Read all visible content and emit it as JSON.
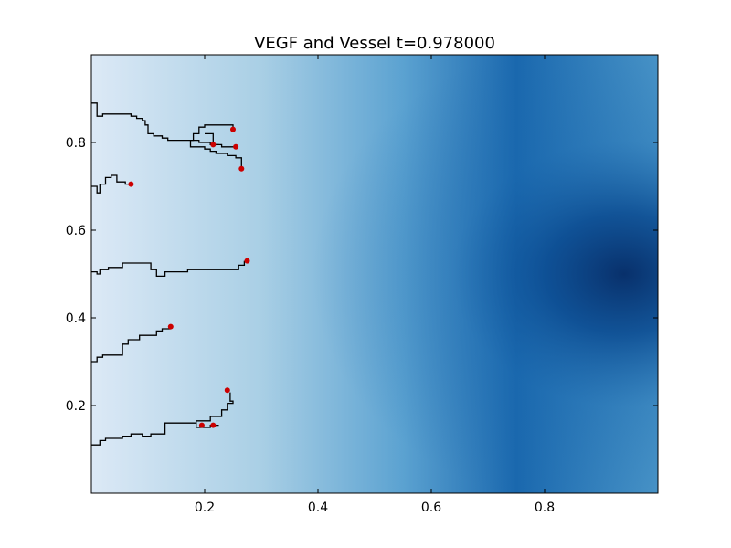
{
  "chart_data": {
    "type": "heatmap",
    "title": "VEGF and Vessel t=0.978000",
    "xlabel": "",
    "ylabel": "",
    "xlim": [
      0.0,
      1.0
    ],
    "ylim": [
      0.0,
      1.0
    ],
    "x_ticks": [
      0.2,
      0.4,
      0.6,
      0.8
    ],
    "x_tick_labels": [
      "0.2",
      "0.4",
      "0.6",
      "0.8"
    ],
    "y_ticks": [
      0.2,
      0.4,
      0.6,
      0.8
    ],
    "y_tick_labels": [
      "0.2",
      "0.4",
      "0.6",
      "0.8"
    ],
    "grid": false,
    "colormap": "Blues",
    "field": {
      "description": "VEGF concentration increasing toward x=1, peak near (0.95, 0.48)",
      "peak": [
        0.95,
        0.48
      ]
    },
    "colors": {
      "low": "#dce9f6",
      "mid_low": "#a9cfe5",
      "mid": "#5ba2d1",
      "mid_high": "#1a68ae",
      "high": "#08306b",
      "vessel": "#000000",
      "tip": "#cc0000"
    },
    "vessels": [
      {
        "name": "vessel-1",
        "points": [
          [
            0.0,
            0.89
          ],
          [
            0.01,
            0.89
          ],
          [
            0.01,
            0.86
          ],
          [
            0.02,
            0.86
          ],
          [
            0.02,
            0.865
          ],
          [
            0.07,
            0.865
          ],
          [
            0.07,
            0.86
          ],
          [
            0.08,
            0.86
          ],
          [
            0.08,
            0.855
          ],
          [
            0.09,
            0.855
          ],
          [
            0.09,
            0.85
          ],
          [
            0.095,
            0.85
          ],
          [
            0.095,
            0.84
          ],
          [
            0.1,
            0.84
          ],
          [
            0.1,
            0.82
          ],
          [
            0.11,
            0.82
          ],
          [
            0.11,
            0.815
          ],
          [
            0.125,
            0.815
          ],
          [
            0.125,
            0.81
          ],
          [
            0.135,
            0.81
          ],
          [
            0.135,
            0.805
          ],
          [
            0.175,
            0.805
          ],
          [
            0.175,
            0.79
          ],
          [
            0.2,
            0.79
          ],
          [
            0.2,
            0.785
          ],
          [
            0.21,
            0.785
          ],
          [
            0.21,
            0.78
          ],
          [
            0.22,
            0.78
          ],
          [
            0.22,
            0.775
          ],
          [
            0.24,
            0.775
          ],
          [
            0.24,
            0.77
          ],
          [
            0.255,
            0.77
          ],
          [
            0.255,
            0.765
          ],
          [
            0.265,
            0.765
          ],
          [
            0.265,
            0.74
          ]
        ]
      },
      {
        "name": "vessel-2",
        "points": [
          [
            0.175,
            0.805
          ],
          [
            0.18,
            0.805
          ],
          [
            0.18,
            0.82
          ],
          [
            0.19,
            0.82
          ],
          [
            0.19,
            0.835
          ],
          [
            0.2,
            0.835
          ],
          [
            0.2,
            0.84
          ],
          [
            0.25,
            0.84
          ],
          [
            0.25,
            0.83
          ]
        ]
      },
      {
        "name": "vessel-3",
        "points": [
          [
            0.175,
            0.805
          ],
          [
            0.19,
            0.805
          ],
          [
            0.19,
            0.8
          ],
          [
            0.21,
            0.8
          ],
          [
            0.21,
            0.795
          ],
          [
            0.23,
            0.795
          ],
          [
            0.23,
            0.79
          ],
          [
            0.255,
            0.79
          ]
        ]
      },
      {
        "name": "vessel-4",
        "points": [
          [
            0.2,
            0.82
          ],
          [
            0.215,
            0.82
          ],
          [
            0.215,
            0.795
          ],
          [
            0.225,
            0.795
          ]
        ]
      },
      {
        "name": "vessel-5",
        "points": [
          [
            0.0,
            0.7
          ],
          [
            0.01,
            0.7
          ],
          [
            0.01,
            0.685
          ],
          [
            0.015,
            0.685
          ],
          [
            0.015,
            0.705
          ],
          [
            0.025,
            0.705
          ],
          [
            0.025,
            0.72
          ],
          [
            0.035,
            0.72
          ],
          [
            0.035,
            0.725
          ],
          [
            0.045,
            0.725
          ],
          [
            0.045,
            0.71
          ],
          [
            0.06,
            0.71
          ],
          [
            0.06,
            0.705
          ],
          [
            0.07,
            0.705
          ]
        ]
      },
      {
        "name": "vessel-6",
        "points": [
          [
            0.0,
            0.505
          ],
          [
            0.01,
            0.505
          ],
          [
            0.01,
            0.5
          ],
          [
            0.015,
            0.5
          ],
          [
            0.015,
            0.51
          ],
          [
            0.03,
            0.51
          ],
          [
            0.03,
            0.515
          ],
          [
            0.055,
            0.515
          ],
          [
            0.055,
            0.525
          ],
          [
            0.105,
            0.525
          ],
          [
            0.105,
            0.51
          ],
          [
            0.115,
            0.51
          ],
          [
            0.115,
            0.495
          ],
          [
            0.13,
            0.495
          ],
          [
            0.13,
            0.505
          ],
          [
            0.17,
            0.505
          ],
          [
            0.17,
            0.51
          ],
          [
            0.26,
            0.51
          ],
          [
            0.26,
            0.52
          ],
          [
            0.27,
            0.52
          ],
          [
            0.27,
            0.53
          ]
        ]
      },
      {
        "name": "vessel-7",
        "points": [
          [
            0.0,
            0.3
          ],
          [
            0.01,
            0.3
          ],
          [
            0.01,
            0.31
          ],
          [
            0.02,
            0.31
          ],
          [
            0.02,
            0.315
          ],
          [
            0.055,
            0.315
          ],
          [
            0.055,
            0.34
          ],
          [
            0.065,
            0.34
          ],
          [
            0.065,
            0.35
          ],
          [
            0.085,
            0.35
          ],
          [
            0.085,
            0.36
          ],
          [
            0.115,
            0.36
          ],
          [
            0.115,
            0.37
          ],
          [
            0.125,
            0.37
          ],
          [
            0.125,
            0.375
          ],
          [
            0.14,
            0.375
          ]
        ]
      },
      {
        "name": "vessel-8",
        "points": [
          [
            0.0,
            0.11
          ],
          [
            0.015,
            0.11
          ],
          [
            0.015,
            0.12
          ],
          [
            0.025,
            0.12
          ],
          [
            0.025,
            0.125
          ],
          [
            0.055,
            0.125
          ],
          [
            0.055,
            0.13
          ],
          [
            0.07,
            0.13
          ],
          [
            0.07,
            0.135
          ],
          [
            0.09,
            0.135
          ],
          [
            0.09,
            0.13
          ],
          [
            0.105,
            0.13
          ],
          [
            0.105,
            0.135
          ],
          [
            0.13,
            0.135
          ],
          [
            0.13,
            0.16
          ],
          [
            0.185,
            0.16
          ],
          [
            0.185,
            0.165
          ],
          [
            0.21,
            0.165
          ],
          [
            0.21,
            0.175
          ],
          [
            0.23,
            0.175
          ],
          [
            0.23,
            0.19
          ],
          [
            0.24,
            0.19
          ],
          [
            0.24,
            0.205
          ],
          [
            0.25,
            0.205
          ],
          [
            0.25,
            0.21
          ],
          [
            0.245,
            0.21
          ],
          [
            0.245,
            0.23
          ]
        ]
      },
      {
        "name": "vessel-9",
        "points": [
          [
            0.185,
            0.16
          ],
          [
            0.185,
            0.15
          ],
          [
            0.21,
            0.15
          ],
          [
            0.21,
            0.155
          ],
          [
            0.225,
            0.155
          ]
        ]
      }
    ],
    "tips": [
      {
        "x": 0.25,
        "y": 0.83
      },
      {
        "x": 0.215,
        "y": 0.795
      },
      {
        "x": 0.255,
        "y": 0.79
      },
      {
        "x": 0.265,
        "y": 0.74
      },
      {
        "x": 0.07,
        "y": 0.705
      },
      {
        "x": 0.275,
        "y": 0.53
      },
      {
        "x": 0.14,
        "y": 0.38
      },
      {
        "x": 0.24,
        "y": 0.235
      },
      {
        "x": 0.215,
        "y": 0.155
      },
      {
        "x": 0.195,
        "y": 0.155
      }
    ]
  }
}
